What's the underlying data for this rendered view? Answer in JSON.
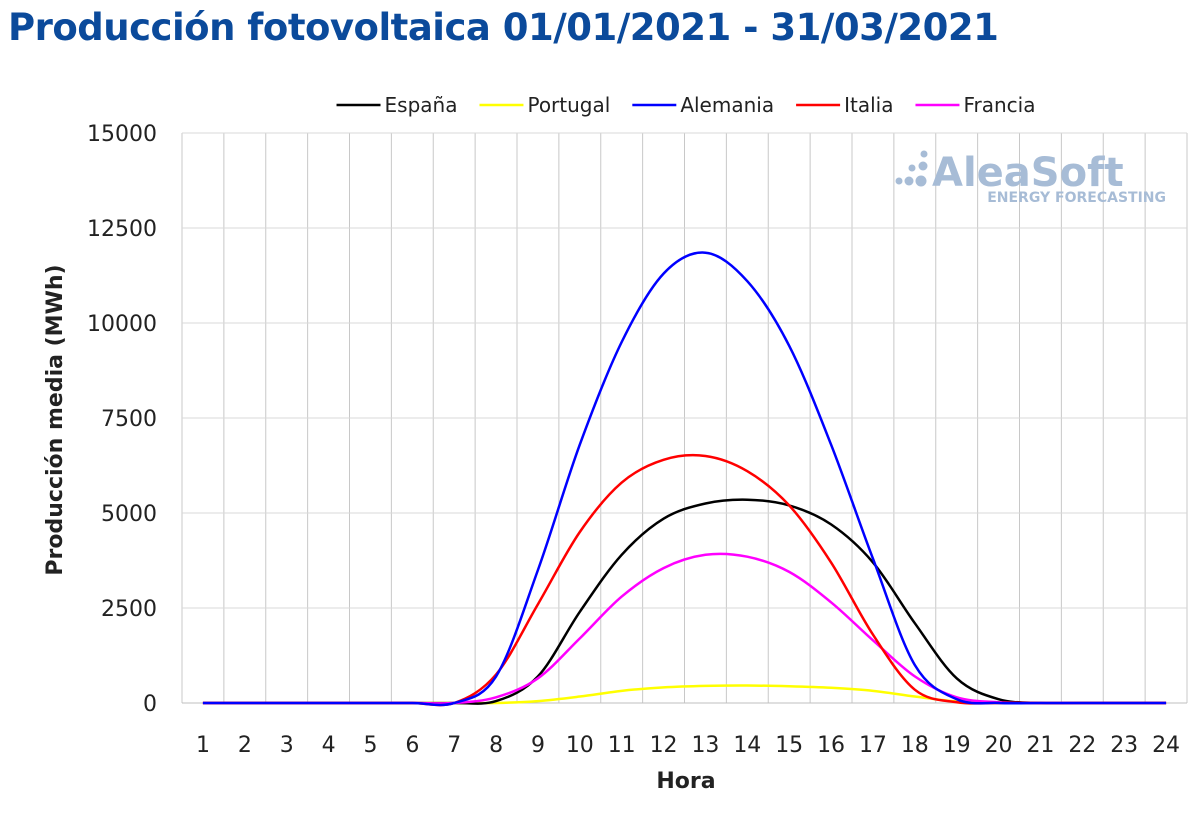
{
  "chart_data": {
    "type": "line",
    "title": "Producción fotovoltaica 01/01/2021 - 31/03/2021",
    "xlabel": "Hora",
    "ylabel": "Producción media (MWh)",
    "ylim": [
      0,
      15000
    ],
    "yticks": [
      0,
      2500,
      5000,
      7500,
      10000,
      12500,
      15000
    ],
    "x": [
      1,
      2,
      3,
      4,
      5,
      6,
      7,
      8,
      9,
      10,
      11,
      12,
      13,
      14,
      15,
      16,
      17,
      18,
      19,
      20,
      21,
      22,
      23,
      24
    ],
    "x_tick_labels": [
      "1",
      "2",
      "3",
      "4",
      "5",
      "6",
      "7",
      "8",
      "9",
      "10",
      "11",
      "12",
      "13",
      "14",
      "15",
      "16",
      "17",
      "18",
      "19",
      "20",
      "21",
      "22",
      "23",
      "24"
    ],
    "grid": "vertical",
    "legend_position": "top",
    "series": [
      {
        "name": "España",
        "color": "#000000",
        "values": [
          0,
          0,
          0,
          0,
          0,
          0,
          0,
          50,
          700,
          2400,
          3900,
          4850,
          5250,
          5350,
          5200,
          4700,
          3700,
          2100,
          650,
          100,
          0,
          0,
          0,
          0
        ]
      },
      {
        "name": "Portugal",
        "color": "#ffff00",
        "values": [
          0,
          0,
          0,
          0,
          0,
          0,
          0,
          0,
          50,
          170,
          320,
          410,
          450,
          460,
          440,
          400,
          320,
          170,
          40,
          0,
          0,
          0,
          0,
          0
        ]
      },
      {
        "name": "Alemania",
        "color": "#0000ff",
        "values": [
          0,
          0,
          0,
          0,
          0,
          0,
          0,
          700,
          3500,
          6800,
          9500,
          11300,
          11850,
          11100,
          9400,
          6800,
          3800,
          1000,
          100,
          0,
          0,
          0,
          0,
          0
        ]
      },
      {
        "name": "Italia",
        "color": "#ff0000",
        "values": [
          0,
          0,
          0,
          0,
          0,
          0,
          0,
          750,
          2600,
          4500,
          5800,
          6400,
          6500,
          6100,
          5200,
          3700,
          1800,
          350,
          20,
          0,
          0,
          0,
          0,
          0
        ]
      },
      {
        "name": "Francia",
        "color": "#ff00ff",
        "values": [
          0,
          0,
          0,
          0,
          0,
          0,
          0,
          150,
          650,
          1700,
          2800,
          3550,
          3900,
          3850,
          3450,
          2650,
          1650,
          700,
          150,
          20,
          0,
          0,
          0,
          0
        ]
      }
    ]
  },
  "logo": {
    "name": "AleaSoft",
    "tagline": "ENERGY FORECASTING"
  }
}
